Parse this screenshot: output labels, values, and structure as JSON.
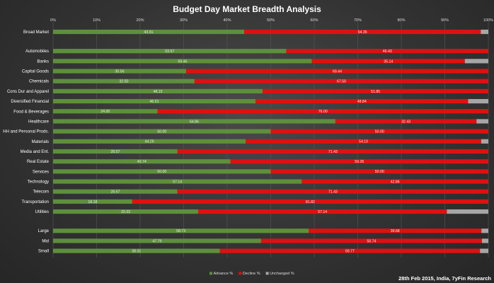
{
  "chart_data": {
    "type": "bar",
    "orientation": "horizontal",
    "stacked": true,
    "title": "Budget Day Market Breadth Analysis",
    "footer": "28th Feb 2015, India, 7yFin Research",
    "x_ticks": [
      "0%",
      "10%",
      "20%",
      "30%",
      "40%",
      "50%",
      "60%",
      "70%",
      "80%",
      "90%",
      "100%"
    ],
    "xlim": [
      0,
      100
    ],
    "grid": true,
    "legend_position": "bottom",
    "colors": {
      "advance": "#5e8f3c",
      "decline": "#dd1111",
      "unchanged": "#a6a6a6",
      "grid": "#585858"
    },
    "series": [
      {
        "name": "Advance %",
        "key": "advance"
      },
      {
        "name": "Decline %",
        "key": "decline"
      },
      {
        "name": "Unchanged %",
        "key": "unchanged"
      }
    ],
    "groups": [
      {
        "rows": [
          {
            "label": "Broad Market",
            "advance": 43.91,
            "decline": 54.35,
            "unchanged": 1.74,
            "advance_label": "43.91",
            "decline_label": "54.35"
          }
        ]
      },
      {
        "rows": [
          {
            "label": "Automobiles",
            "advance": 53.57,
            "decline": 46.43,
            "unchanged": 0,
            "advance_label": "53.57",
            "decline_label": "46.43"
          },
          {
            "label": "Banks",
            "advance": 59.46,
            "decline": 35.14,
            "unchanged": 5.4,
            "advance_label": "59.46",
            "decline_label": "35.14"
          },
          {
            "label": "Capital Goods",
            "advance": 30.56,
            "decline": 69.44,
            "unchanged": 0,
            "advance_label": "30.56",
            "decline_label": "69.44"
          },
          {
            "label": "Chemicals",
            "advance": 32.5,
            "decline": 67.5,
            "unchanged": 0,
            "advance_label": "32.50",
            "decline_label": "67.50"
          },
          {
            "label": "Cons Dur and Apparel",
            "advance": 48.15,
            "decline": 51.85,
            "unchanged": 0,
            "advance_label": "48.15",
            "decline_label": "51.85"
          },
          {
            "label": "Diversified Financial",
            "advance": 46.51,
            "decline": 48.84,
            "unchanged": 4.65,
            "advance_label": "46.51",
            "decline_label": "48.84"
          },
          {
            "label": "Food & Beverages",
            "advance": 24.0,
            "decline": 76.0,
            "unchanged": 0,
            "advance_label": "24.00",
            "decline_label": "76.00"
          },
          {
            "label": "Healthcare",
            "advance": 64.86,
            "decline": 32.43,
            "unchanged": 2.71,
            "advance_label": "64.86",
            "decline_label": "32.43"
          },
          {
            "label": "HH and Personal Prods.",
            "advance": 50.0,
            "decline": 50.0,
            "unchanged": 0,
            "advance_label": "50.00",
            "decline_label": "50.00"
          },
          {
            "label": "Materials",
            "advance": 44.26,
            "decline": 54.1,
            "unchanged": 1.64,
            "advance_label": "44.26",
            "decline_label": "54.10"
          },
          {
            "label": "Media and Ent.",
            "advance": 28.57,
            "decline": 71.43,
            "unchanged": 0,
            "advance_label": "28.57",
            "decline_label": "71.43"
          },
          {
            "label": "Real Estate",
            "advance": 40.74,
            "decline": 59.26,
            "unchanged": 0,
            "advance_label": "40.74",
            "decline_label": "59.26"
          },
          {
            "label": "Services",
            "advance": 50.0,
            "decline": 50.0,
            "unchanged": 0,
            "advance_label": "50.00",
            "decline_label": "50.00"
          },
          {
            "label": "Technology",
            "advance": 57.14,
            "decline": 42.86,
            "unchanged": 0,
            "advance_label": "57.14",
            "decline_label": "42.86"
          },
          {
            "label": "Telecom",
            "advance": 28.57,
            "decline": 71.43,
            "unchanged": 0,
            "advance_label": "28.57",
            "decline_label": "71.43"
          },
          {
            "label": "Transportation",
            "advance": 18.18,
            "decline": 81.82,
            "unchanged": 0,
            "advance_label": "18.18",
            "decline_label": "81.82"
          },
          {
            "label": "Utilities",
            "advance": 33.33,
            "decline": 57.14,
            "unchanged": 9.53,
            "advance_label": "33.33",
            "decline_label": "57.14"
          }
        ]
      },
      {
        "rows": [
          {
            "label": "Large",
            "advance": 58.73,
            "decline": 39.68,
            "unchanged": 1.59,
            "advance_label": "58.73",
            "decline_label": "39.68"
          },
          {
            "label": "Mid",
            "advance": 47.79,
            "decline": 50.74,
            "unchanged": 1.47,
            "advance_label": "47.79",
            "decline_label": "50.74"
          },
          {
            "label": "Small",
            "advance": 38.31,
            "decline": 59.77,
            "unchanged": 1.92,
            "advance_label": "38.31",
            "decline_label": "59.77"
          }
        ]
      }
    ]
  }
}
